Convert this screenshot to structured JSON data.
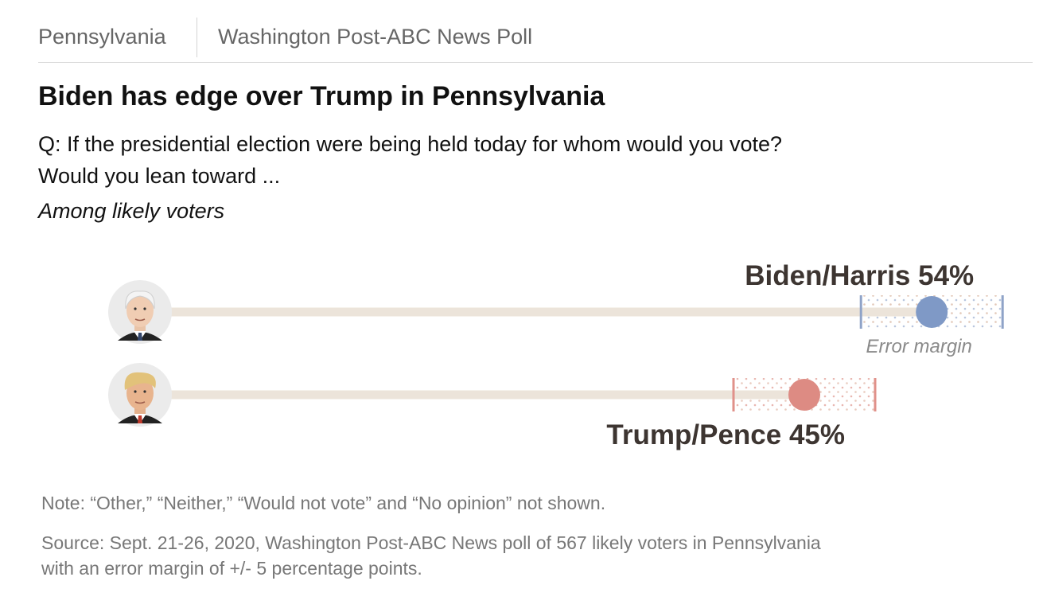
{
  "header": {
    "kicker_left": "Pennsylvania",
    "kicker_right": "Washington Post-ABC News Poll"
  },
  "title": "Biden has edge over Trump in Pennsylvania",
  "question": {
    "line1": "Q: If the presidential election were being held today for whom would you vote?",
    "line2": "Would you lean toward ..."
  },
  "subtitle": "Among likely voters",
  "footer": {
    "note": "Note: “Other,” “Neither,” “Would not vote” and “No opinion” not shown.",
    "source_line1": "Source: Sept. 21-26, 2020, Washington Post-ABC News poll of 567 likely voters in Pennsylvania",
    "source_line2": "with an error margin of +/- 5 percentage points."
  },
  "chart_data": {
    "type": "dot-plot",
    "title": "Biden has edge over Trump in Pennsylvania",
    "unit": "%",
    "error_margin": 5,
    "error_margin_label": "Error margin",
    "series": [
      {
        "name": "Biden/Harris",
        "value": 54,
        "label": "Biden/Harris 54%",
        "color": "#8fa3c8",
        "marker_color": "#7f99c6",
        "icon": "biden-portrait-icon"
      },
      {
        "name": "Trump/Pence",
        "value": 45,
        "label": "Trump/Pence 45%",
        "color": "#e0918a",
        "marker_color": "#dd8b83",
        "icon": "trump-portrait-icon"
      }
    ],
    "track_color": "#ece4da"
  }
}
